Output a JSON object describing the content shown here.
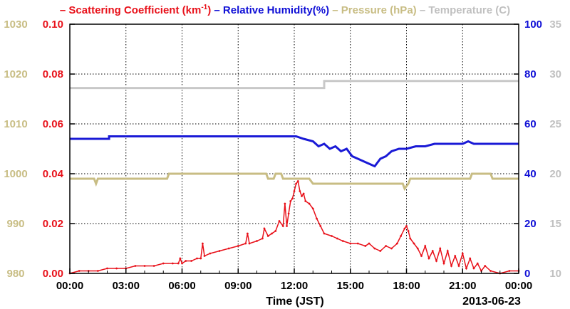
{
  "chart_data": {
    "type": "line",
    "title_parts": [
      {
        "marker": "–",
        "text": "Scattering Coefficient (km",
        "sup": "-1",
        "after": ")",
        "color": "#e8111a"
      },
      {
        "marker": "–",
        "text": "Relative Humidity(%)",
        "color": "#1010d6"
      },
      {
        "marker": "–",
        "text": "Pressure (hPa)",
        "color": "#c8bd84"
      },
      {
        "marker": "–",
        "text": "Temperature (",
        "after": "C)",
        "color": "#c0c0c0"
      }
    ],
    "xlabel": "Time (JST)",
    "date_label": "2013-06-23",
    "x_ticks": [
      "00:00",
      "03:00",
      "06:00",
      "09:00",
      "12:00",
      "15:00",
      "18:00",
      "21:00",
      "00:00"
    ],
    "xlim": [
      0,
      24
    ],
    "axes": {
      "pressure": {
        "ylim": [
          980,
          1030
        ],
        "ticks": [
          "980",
          "990",
          "1000",
          "1010",
          "1020",
          "1030"
        ],
        "color": "#c8bd84"
      },
      "scattering": {
        "ylim": [
          0,
          0.1
        ],
        "ticks": [
          "0.00",
          "0.02",
          "0.04",
          "0.06",
          "0.08",
          "0.10"
        ],
        "color": "#e8111a"
      },
      "humidity": {
        "ylim": [
          0,
          100
        ],
        "ticks": [
          "0",
          "20",
          "40",
          "60",
          "80",
          "100"
        ],
        "color": "#1010d6"
      },
      "temperature": {
        "ylim": [
          10,
          35
        ],
        "ticks": [
          "10",
          "15",
          "20",
          "25",
          "30",
          "35"
        ],
        "color": "#c0c0c0"
      }
    },
    "grid": true,
    "series": [
      {
        "name": "Temperature",
        "axis": "temperature",
        "color": "#c8c8c8",
        "x": [
          0,
          13.6,
          13.6,
          24
        ],
        "y": [
          28.6,
          28.6,
          29.3,
          29.3
        ]
      },
      {
        "name": "Relative Humidity",
        "axis": "humidity",
        "color": "#1a1ad6",
        "x": [
          0,
          2.1,
          2.1,
          12.1,
          12.5,
          13.0,
          13.3,
          13.6,
          13.9,
          14.2,
          14.5,
          14.8,
          15.1,
          15.4,
          15.7,
          16.0,
          16.3,
          16.6,
          16.9,
          17.2,
          17.6,
          18.0,
          18.5,
          19.0,
          19.5,
          20.0,
          21.0,
          21.3,
          21.6,
          22.0,
          24
        ],
        "y": [
          54,
          54,
          55,
          55,
          54,
          53,
          51,
          52,
          50,
          51,
          49,
          50,
          47,
          46,
          45,
          44,
          43,
          46,
          47,
          49,
          50,
          50,
          51,
          51,
          52,
          52,
          52,
          53,
          52,
          52,
          52
        ]
      },
      {
        "name": "Pressure",
        "axis": "pressure",
        "color": "#c8bd84",
        "x": [
          0,
          1.3,
          1.4,
          1.5,
          5.2,
          5.3,
          5.5,
          6.2,
          6.3,
          10.5,
          10.6,
          10.9,
          11.0,
          11.3,
          11.4,
          12.8,
          13.0,
          16.0,
          16.5,
          17.0,
          17.8,
          17.9,
          18.1,
          18.2,
          19.0,
          20.0,
          21.4,
          21.5,
          22.5,
          22.6,
          24
        ],
        "y": [
          999,
          999,
          998,
          999,
          999,
          1000,
          1000,
          1000,
          1000,
          1000,
          999,
          999,
          1000,
          1000,
          999,
          999,
          998,
          998,
          998,
          998,
          998,
          997,
          998,
          999,
          999,
          999,
          999,
          1000,
          1000,
          999,
          999
        ]
      },
      {
        "name": "Scattering Coefficient",
        "axis": "scattering",
        "color": "#e8111a",
        "x": [
          0,
          0.5,
          1.0,
          1.5,
          2.0,
          2.5,
          3.0,
          3.5,
          4.0,
          4.5,
          5.0,
          5.5,
          5.8,
          5.9,
          6.0,
          6.2,
          6.5,
          6.8,
          7.0,
          7.1,
          7.2,
          7.5,
          8.0,
          8.5,
          9.0,
          9.4,
          9.5,
          9.6,
          10.0,
          10.3,
          10.4,
          10.6,
          10.8,
          11.0,
          11.2,
          11.4,
          11.5,
          11.6,
          11.7,
          11.8,
          11.9,
          12.0,
          12.1,
          12.2,
          12.3,
          12.4,
          12.5,
          12.6,
          12.8,
          13.0,
          13.2,
          13.4,
          13.6,
          14.0,
          14.3,
          14.6,
          15.0,
          15.4,
          15.8,
          16.0,
          16.3,
          16.6,
          16.9,
          17.2,
          17.5,
          17.7,
          17.9,
          18.0,
          18.1,
          18.2,
          18.4,
          18.6,
          18.8,
          19.0,
          19.2,
          19.4,
          19.6,
          19.8,
          20.0,
          20.2,
          20.4,
          20.6,
          20.8,
          21.0,
          21.2,
          21.4,
          21.6,
          21.8,
          22.0,
          22.2,
          22.5,
          23.0,
          23.5,
          24
        ],
        "y": [
          0.0,
          0.001,
          0.001,
          0.001,
          0.002,
          0.002,
          0.002,
          0.003,
          0.003,
          0.003,
          0.004,
          0.004,
          0.004,
          0.006,
          0.004,
          0.005,
          0.005,
          0.006,
          0.006,
          0.012,
          0.007,
          0.008,
          0.009,
          0.01,
          0.011,
          0.012,
          0.016,
          0.012,
          0.013,
          0.014,
          0.018,
          0.015,
          0.016,
          0.017,
          0.021,
          0.019,
          0.028,
          0.019,
          0.024,
          0.029,
          0.03,
          0.033,
          0.036,
          0.037,
          0.033,
          0.031,
          0.032,
          0.029,
          0.028,
          0.026,
          0.022,
          0.019,
          0.016,
          0.015,
          0.014,
          0.013,
          0.012,
          0.012,
          0.011,
          0.012,
          0.01,
          0.009,
          0.011,
          0.01,
          0.012,
          0.015,
          0.018,
          0.019,
          0.017,
          0.014,
          0.012,
          0.01,
          0.007,
          0.011,
          0.006,
          0.009,
          0.005,
          0.01,
          0.004,
          0.009,
          0.003,
          0.007,
          0.003,
          0.008,
          0.002,
          0.006,
          0.002,
          0.004,
          0.001,
          0.003,
          0.001,
          0.0,
          0.001,
          0.001
        ]
      }
    ]
  }
}
